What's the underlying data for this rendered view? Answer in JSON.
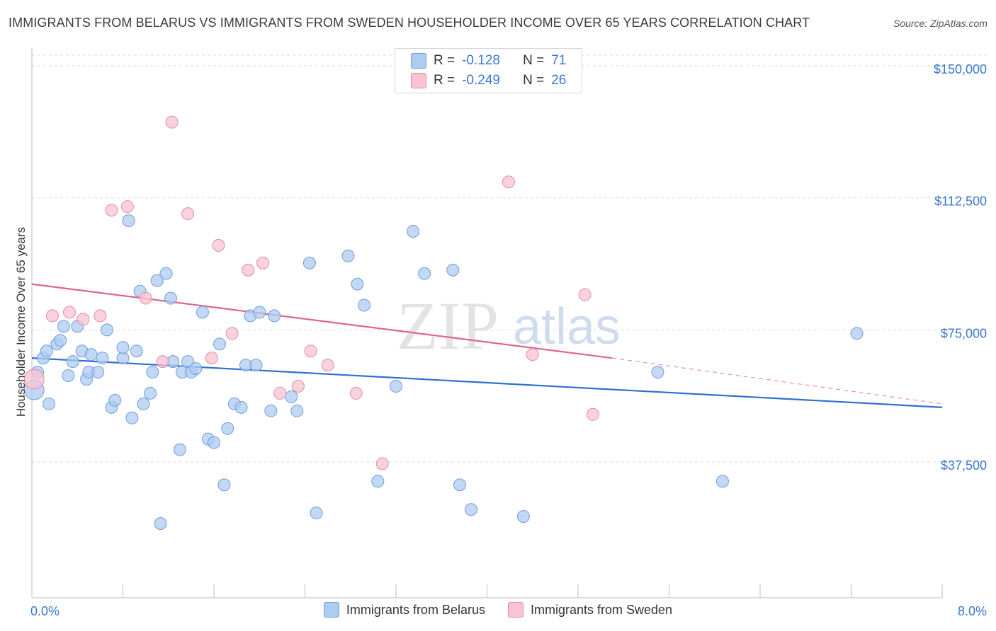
{
  "title": "IMMIGRANTS FROM BELARUS VS IMMIGRANTS FROM SWEDEN HOUSEHOLDER INCOME OVER 65 YEARS CORRELATION CHART",
  "source": "Source: ZipAtlas.com",
  "watermark": {
    "zip": "ZIP",
    "atlas": "atlas"
  },
  "stats": {
    "r_label": "R =",
    "n_label": "N =",
    "belarus": {
      "r": "-0.128",
      "n": "71"
    },
    "sweden": {
      "r": "-0.249",
      "n": "26"
    }
  },
  "colors": {
    "belarus_fill": "#aecbf0",
    "belarus_stroke": "#6f9fdc",
    "belarus_line": "#2f6fce",
    "sweden_fill": "#f8c3d3",
    "sweden_stroke": "#e58aa8",
    "sweden_line": "#e0648e",
    "tick_label": "#3b78d0"
  },
  "chart_data": {
    "type": "scatter",
    "title": "IMMIGRANTS FROM BELARUS VS IMMIGRANTS FROM SWEDEN HOUSEHOLDER INCOME OVER 65 YEARS CORRELATION CHART",
    "xlabel": "",
    "ylabel": "Householder Income Over 65 years",
    "xlim": [
      0,
      8
    ],
    "ylim": [
      0,
      155000
    ],
    "x_tick_labels": [
      "0.0%",
      "8.0%"
    ],
    "y_ticks": [
      37500,
      75000,
      112500,
      150000
    ],
    "y_tick_labels": [
      "$37,500",
      "$75,000",
      "$112,500",
      "$150,000"
    ],
    "grid": true,
    "legend_position": "bottom",
    "series": [
      {
        "name": "Immigrants from Belarus",
        "points": [
          [
            0.02,
            58000
          ],
          [
            0.05,
            63000
          ],
          [
            0.1,
            67000
          ],
          [
            0.13,
            69000
          ],
          [
            0.15,
            54000
          ],
          [
            0.22,
            71000
          ],
          [
            0.25,
            72000
          ],
          [
            0.28,
            76000
          ],
          [
            0.32,
            62000
          ],
          [
            0.36,
            66000
          ],
          [
            0.4,
            76000
          ],
          [
            0.44,
            69000
          ],
          [
            0.48,
            61000
          ],
          [
            0.5,
            63000
          ],
          [
            0.52,
            68000
          ],
          [
            0.58,
            63000
          ],
          [
            0.62,
            67000
          ],
          [
            0.66,
            75000
          ],
          [
            0.7,
            53000
          ],
          [
            0.73,
            55000
          ],
          [
            0.8,
            67000
          ],
          [
            0.8,
            70000
          ],
          [
            0.85,
            106000
          ],
          [
            0.88,
            50000
          ],
          [
            0.92,
            69000
          ],
          [
            0.95,
            86000
          ],
          [
            0.98,
            54000
          ],
          [
            1.04,
            57000
          ],
          [
            1.06,
            63000
          ],
          [
            1.1,
            89000
          ],
          [
            1.13,
            20000
          ],
          [
            1.18,
            91000
          ],
          [
            1.22,
            84000
          ],
          [
            1.24,
            66000
          ],
          [
            1.3,
            41000
          ],
          [
            1.32,
            63000
          ],
          [
            1.37,
            66000
          ],
          [
            1.4,
            63000
          ],
          [
            1.44,
            64000
          ],
          [
            1.5,
            80000
          ],
          [
            1.55,
            44000
          ],
          [
            1.6,
            43000
          ],
          [
            1.65,
            71000
          ],
          [
            1.69,
            31000
          ],
          [
            1.72,
            47000
          ],
          [
            1.78,
            54000
          ],
          [
            1.84,
            53000
          ],
          [
            1.88,
            65000
          ],
          [
            1.92,
            79000
          ],
          [
            1.97,
            65000
          ],
          [
            2.0,
            80000
          ],
          [
            2.1,
            52000
          ],
          [
            2.13,
            79000
          ],
          [
            2.28,
            56000
          ],
          [
            2.33,
            52000
          ],
          [
            2.44,
            94000
          ],
          [
            2.5,
            23000
          ],
          [
            2.78,
            96000
          ],
          [
            2.86,
            88000
          ],
          [
            2.92,
            82000
          ],
          [
            3.04,
            32000
          ],
          [
            3.2,
            59000
          ],
          [
            3.35,
            103000
          ],
          [
            3.45,
            91000
          ],
          [
            3.7,
            92000
          ],
          [
            3.76,
            31000
          ],
          [
            3.86,
            24000
          ],
          [
            4.32,
            22000
          ],
          [
            5.5,
            63000
          ],
          [
            6.07,
            32000
          ],
          [
            7.25,
            74000
          ]
        ]
      },
      {
        "name": "Immigrants from Sweden",
        "points": [
          [
            0.02,
            61000
          ],
          [
            0.18,
            79000
          ],
          [
            0.33,
            80000
          ],
          [
            0.45,
            78000
          ],
          [
            0.6,
            79000
          ],
          [
            0.7,
            109000
          ],
          [
            0.84,
            110000
          ],
          [
            1.0,
            84000
          ],
          [
            1.15,
            66000
          ],
          [
            1.23,
            134000
          ],
          [
            1.37,
            108000
          ],
          [
            1.58,
            67000
          ],
          [
            1.64,
            99000
          ],
          [
            1.76,
            74000
          ],
          [
            1.9,
            92000
          ],
          [
            2.03,
            94000
          ],
          [
            2.18,
            57000
          ],
          [
            2.34,
            59000
          ],
          [
            2.45,
            69000
          ],
          [
            2.6,
            65000
          ],
          [
            2.85,
            57000
          ],
          [
            3.08,
            37000
          ],
          [
            4.19,
            117000
          ],
          [
            4.4,
            68000
          ],
          [
            4.86,
            85000
          ],
          [
            4.93,
            51000
          ]
        ]
      }
    ],
    "trendlines": [
      {
        "name": "Immigrants from Belarus",
        "x": [
          0,
          8
        ],
        "y": [
          67000,
          53000
        ]
      },
      {
        "name": "Immigrants from Sweden",
        "x": [
          0,
          5.1
        ],
        "y": [
          88000,
          67000
        ],
        "dashed_extension_to": [
          8,
          54000
        ]
      }
    ]
  },
  "legend": {
    "belarus": "Immigrants from Belarus",
    "sweden": "Immigrants from Sweden"
  }
}
